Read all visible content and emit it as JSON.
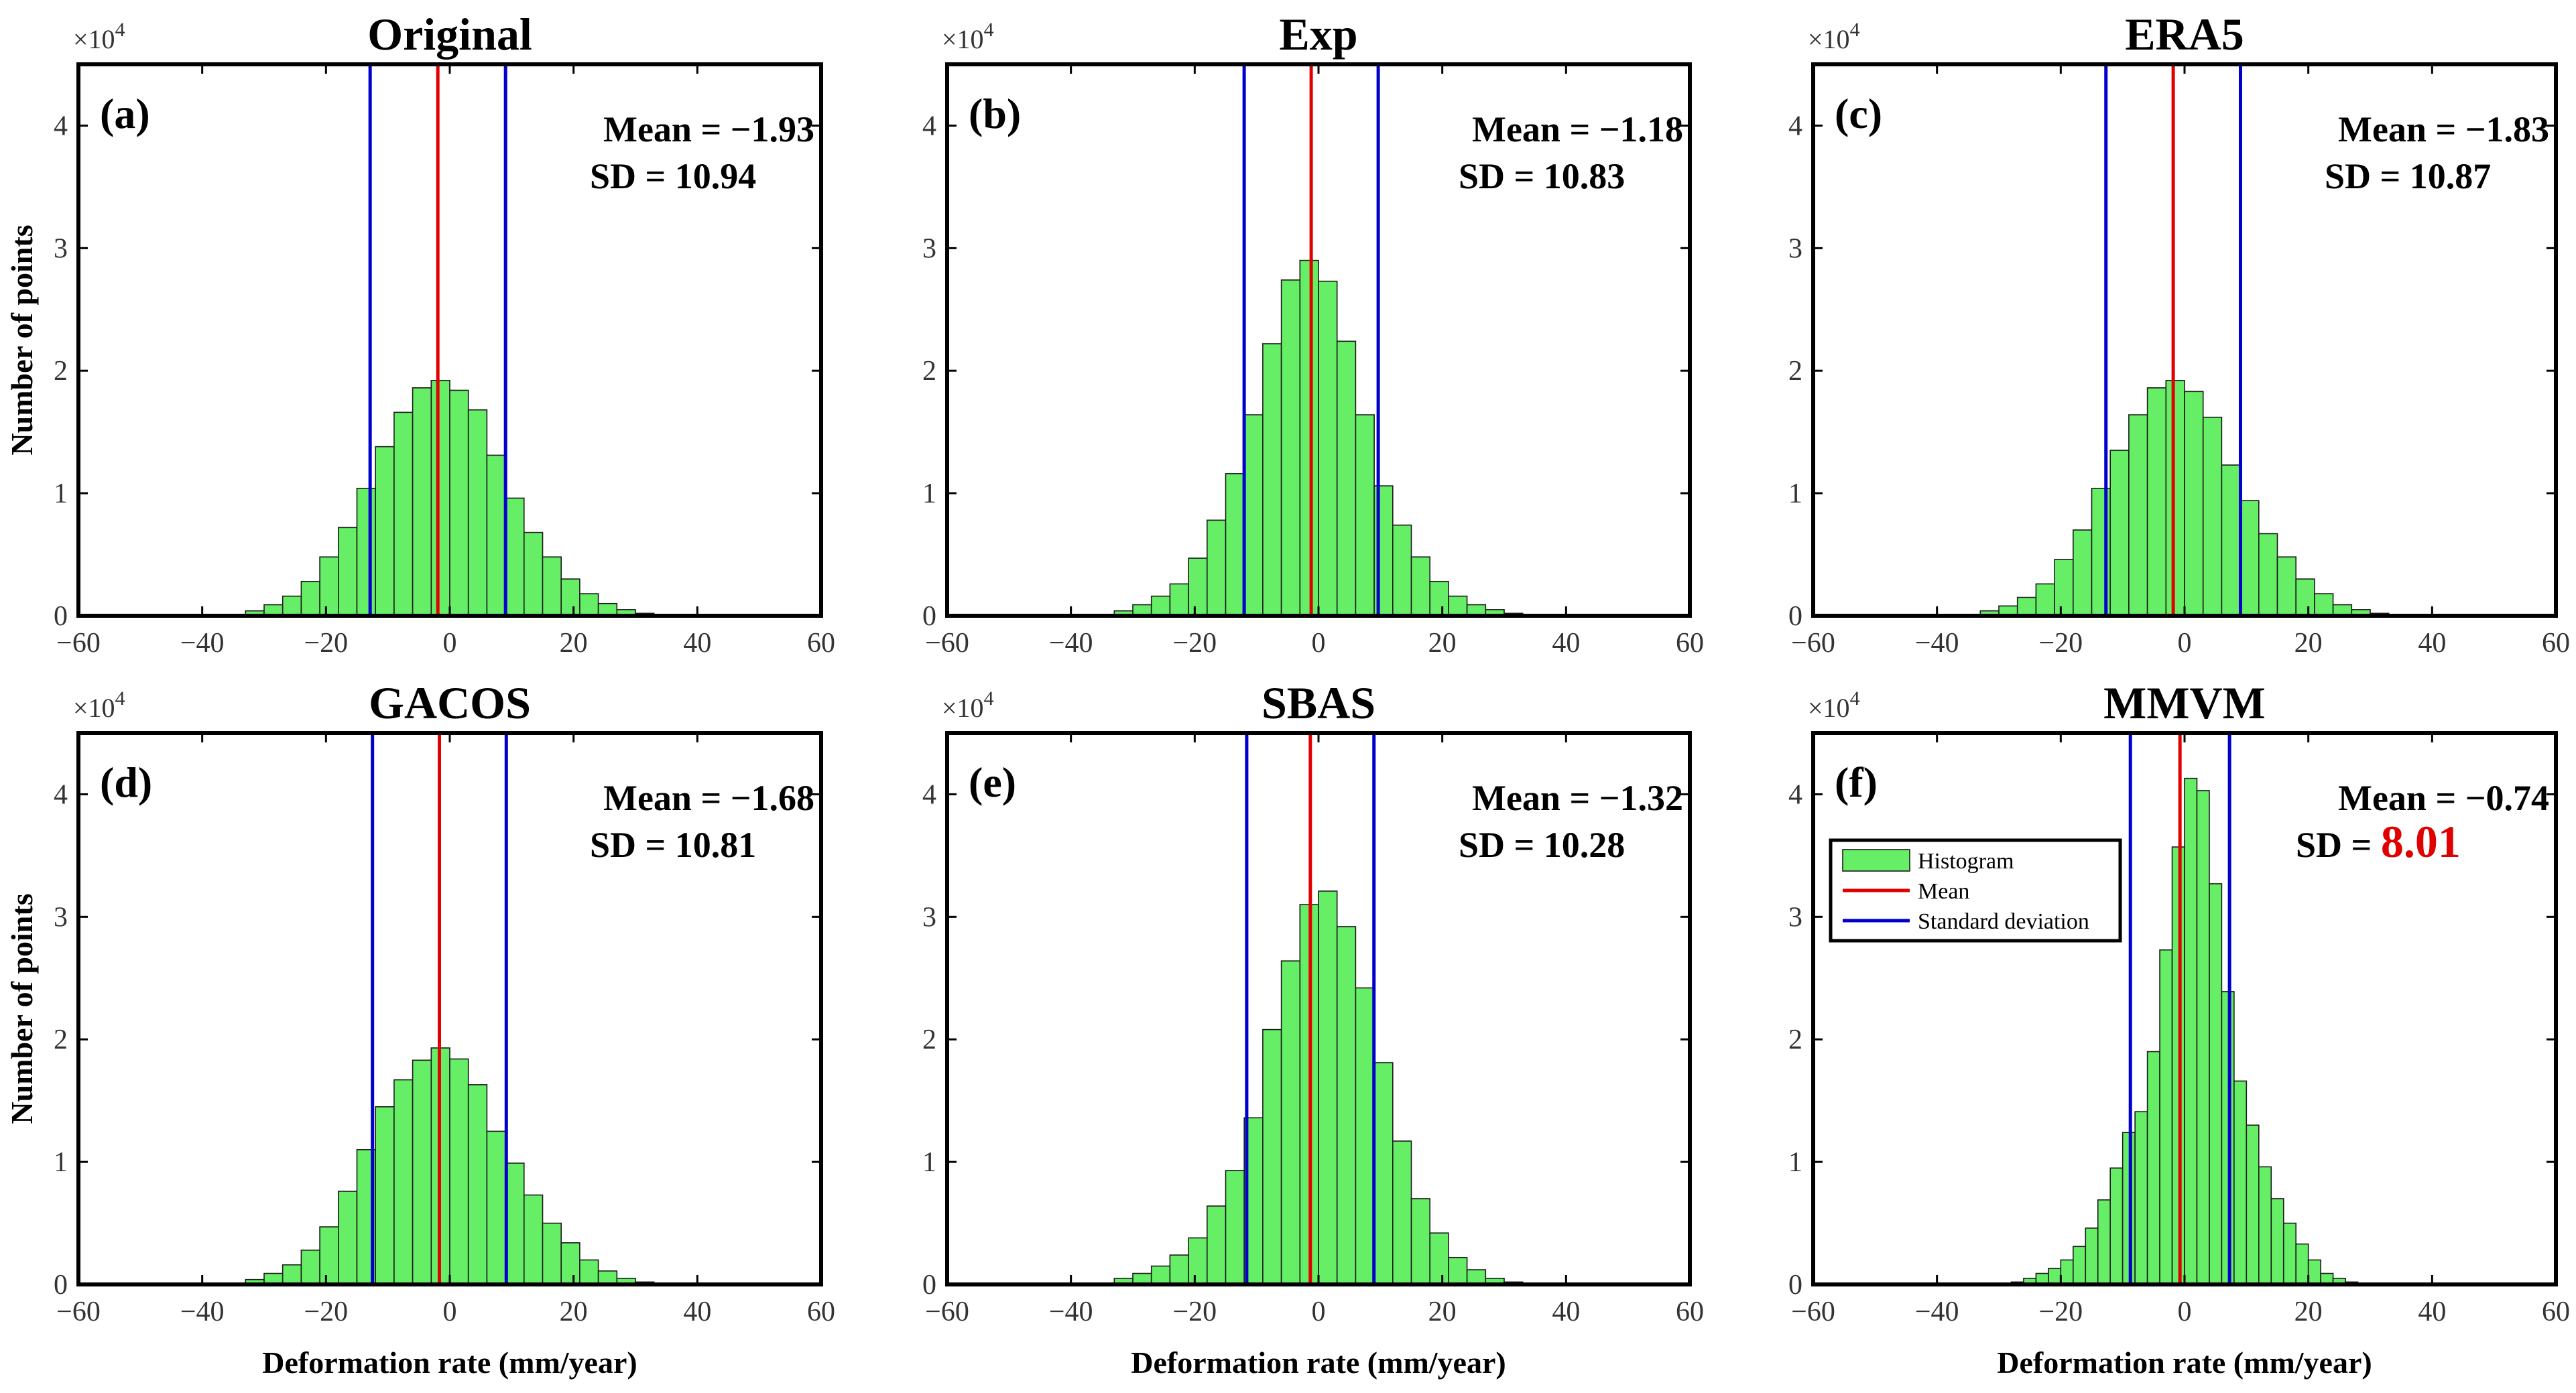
{
  "figure": {
    "ylabel": "Number of points",
    "xlabel": "Deformation rate (mm/year)",
    "y_exponent_label": "×10",
    "y_exponent_power": "4"
  },
  "legend": {
    "items": [
      {
        "label": "Histogram",
        "color": "#66ee66",
        "kind": "bar"
      },
      {
        "label": "Mean",
        "color": "#e00000",
        "kind": "line"
      },
      {
        "label": "Standard deviation",
        "color": "#0000cc",
        "kind": "line"
      }
    ]
  },
  "colors": {
    "bar_fill": "#66ee66",
    "bar_edge": "#1a1a1a",
    "mean_line": "#e00000",
    "sd_line": "#0000cc",
    "highlight": "#e00000"
  },
  "chart_data": [
    {
      "type": "bar",
      "id": "a",
      "label": "(a)",
      "title": "Original",
      "mean": -1.93,
      "sd": 10.94,
      "mean_text": "Mean = −1.93",
      "sd_text": "SD = 10.94",
      "sd_prefix": "SD = ",
      "sd_value_text": "10.94",
      "sd_highlight": false,
      "xlim": [
        -60,
        60
      ],
      "ylim": [
        0,
        45000
      ],
      "bin_width": 3,
      "x_ticks": [
        -60,
        -40,
        -20,
        0,
        20,
        40,
        60
      ],
      "x_tick_labels": [
        "−60",
        "−40",
        "−20",
        "0",
        "20",
        "40",
        "60"
      ],
      "y_ticks": [
        0,
        10000,
        20000,
        30000,
        40000
      ],
      "y_tick_labels": [
        "0",
        "1",
        "2",
        "3",
        "4"
      ],
      "bin_starts": [
        -39,
        -36,
        -33,
        -30,
        -27,
        -24,
        -21,
        -18,
        -15,
        -12,
        -9,
        -6,
        -3,
        0,
        3,
        6,
        9,
        12,
        15,
        18,
        21,
        24,
        27,
        30,
        33,
        36,
        39
      ],
      "values": [
        30,
        120,
        400,
        900,
        1600,
        2800,
        4800,
        7200,
        10400,
        13800,
        16600,
        18600,
        19200,
        18400,
        16800,
        13100,
        9600,
        6800,
        4800,
        3000,
        1800,
        1000,
        500,
        200,
        80,
        30,
        10
      ]
    },
    {
      "type": "bar",
      "id": "b",
      "label": "(b)",
      "title": "Exp",
      "mean": -1.18,
      "sd": 10.83,
      "mean_text": "Mean = −1.18",
      "sd_text": "SD = 10.83",
      "sd_prefix": "SD = ",
      "sd_value_text": "10.83",
      "sd_highlight": false,
      "xlim": [
        -60,
        60
      ],
      "ylim": [
        0,
        45000
      ],
      "bin_width": 3,
      "x_ticks": [
        -60,
        -40,
        -20,
        0,
        20,
        40,
        60
      ],
      "x_tick_labels": [
        "−60",
        "−40",
        "−20",
        "0",
        "20",
        "40",
        "60"
      ],
      "y_ticks": [
        0,
        10000,
        20000,
        30000,
        40000
      ],
      "y_tick_labels": [
        "0",
        "1",
        "2",
        "3",
        "4"
      ],
      "bin_starts": [
        -39,
        -36,
        -33,
        -30,
        -27,
        -24,
        -21,
        -18,
        -15,
        -12,
        -9,
        -6,
        -3,
        0,
        3,
        6,
        9,
        12,
        15,
        18,
        21,
        24,
        27,
        30,
        33,
        36,
        39
      ],
      "values": [
        30,
        120,
        400,
        900,
        1600,
        2600,
        4700,
        7800,
        11600,
        16400,
        22200,
        27400,
        29000,
        27300,
        22400,
        16400,
        10600,
        7400,
        4800,
        2800,
        1600,
        900,
        500,
        200,
        80,
        30,
        10
      ]
    },
    {
      "type": "bar",
      "id": "c",
      "label": "(c)",
      "title": "ERA5",
      "mean": -1.83,
      "sd": 10.87,
      "mean_text": "Mean = −1.83",
      "sd_text": "SD = 10.87",
      "sd_prefix": "SD = ",
      "sd_value_text": "10.87",
      "sd_highlight": false,
      "xlim": [
        -60,
        60
      ],
      "ylim": [
        0,
        45000
      ],
      "bin_width": 3,
      "x_ticks": [
        -60,
        -40,
        -20,
        0,
        20,
        40,
        60
      ],
      "x_tick_labels": [
        "−60",
        "−40",
        "−20",
        "0",
        "20",
        "40",
        "60"
      ],
      "y_ticks": [
        0,
        10000,
        20000,
        30000,
        40000
      ],
      "y_tick_labels": [
        "0",
        "1",
        "2",
        "3",
        "4"
      ],
      "bin_starts": [
        -39,
        -36,
        -33,
        -30,
        -27,
        -24,
        -21,
        -18,
        -15,
        -12,
        -9,
        -6,
        -3,
        0,
        3,
        6,
        9,
        12,
        15,
        18,
        21,
        24,
        27,
        30,
        33,
        36,
        39
      ],
      "values": [
        30,
        120,
        400,
        800,
        1500,
        2600,
        4600,
        7000,
        10400,
        13500,
        16400,
        18600,
        19200,
        18300,
        16200,
        12300,
        9400,
        6700,
        4800,
        3000,
        1800,
        900,
        500,
        200,
        80,
        30,
        10
      ]
    },
    {
      "type": "bar",
      "id": "d",
      "label": "(d)",
      "title": "GACOS",
      "mean": -1.68,
      "sd": 10.81,
      "mean_text": "Mean = −1.68",
      "sd_text": "SD = 10.81",
      "sd_prefix": "SD = ",
      "sd_value_text": "10.81",
      "sd_highlight": false,
      "xlim": [
        -60,
        60
      ],
      "ylim": [
        0,
        45000
      ],
      "bin_width": 3,
      "x_ticks": [
        -60,
        -40,
        -20,
        0,
        20,
        40,
        60
      ],
      "x_tick_labels": [
        "−60",
        "−40",
        "−20",
        "0",
        "20",
        "40",
        "60"
      ],
      "y_ticks": [
        0,
        10000,
        20000,
        30000,
        40000
      ],
      "y_tick_labels": [
        "0",
        "1",
        "2",
        "3",
        "4"
      ],
      "bin_starts": [
        -39,
        -36,
        -33,
        -30,
        -27,
        -24,
        -21,
        -18,
        -15,
        -12,
        -9,
        -6,
        -3,
        0,
        3,
        6,
        9,
        12,
        15,
        18,
        21,
        24,
        27,
        30,
        33,
        36,
        39
      ],
      "values": [
        30,
        120,
        400,
        900,
        1600,
        2800,
        4700,
        7600,
        11000,
        14500,
        16700,
        18300,
        19300,
        18400,
        16300,
        12500,
        9900,
        7300,
        5000,
        3400,
        2000,
        1100,
        500,
        200,
        80,
        30,
        10
      ]
    },
    {
      "type": "bar",
      "id": "e",
      "label": "(e)",
      "title": "SBAS",
      "mean": -1.32,
      "sd": 10.28,
      "mean_text": "Mean = −1.32",
      "sd_text": "SD = 10.28",
      "sd_prefix": "SD = ",
      "sd_value_text": "10.28",
      "sd_highlight": false,
      "xlim": [
        -60,
        60
      ],
      "ylim": [
        0,
        45000
      ],
      "bin_width": 3,
      "x_ticks": [
        -60,
        -40,
        -20,
        0,
        20,
        40,
        60
      ],
      "x_tick_labels": [
        "−60",
        "−40",
        "−20",
        "0",
        "20",
        "40",
        "60"
      ],
      "y_ticks": [
        0,
        10000,
        20000,
        30000,
        40000
      ],
      "y_tick_labels": [
        "0",
        "1",
        "2",
        "3",
        "4"
      ],
      "bin_starts": [
        -39,
        -36,
        -33,
        -30,
        -27,
        -24,
        -21,
        -18,
        -15,
        -12,
        -9,
        -6,
        -3,
        0,
        3,
        6,
        9,
        12,
        15,
        18,
        21,
        24,
        27,
        30,
        33,
        36,
        39
      ],
      "values": [
        30,
        120,
        500,
        900,
        1500,
        2400,
        3800,
        6400,
        9300,
        13600,
        20800,
        26400,
        31000,
        32100,
        29200,
        24200,
        18100,
        11700,
        7000,
        4200,
        2200,
        1200,
        500,
        200,
        80,
        30,
        10
      ]
    },
    {
      "type": "bar",
      "id": "f",
      "label": "(f)",
      "title": "MMVM",
      "mean": -0.74,
      "sd": 8.01,
      "mean_text": "Mean = −0.74",
      "sd_text": "SD = 8.01",
      "sd_prefix": "SD = ",
      "sd_value_text": "8.01",
      "sd_highlight": true,
      "xlim": [
        -60,
        60
      ],
      "ylim": [
        0,
        45000
      ],
      "bin_width": 2,
      "x_ticks": [
        -60,
        -40,
        -20,
        0,
        20,
        40,
        60
      ],
      "x_tick_labels": [
        "−60",
        "−40",
        "−20",
        "0",
        "20",
        "40",
        "60"
      ],
      "y_ticks": [
        0,
        10000,
        20000,
        30000,
        40000
      ],
      "y_tick_labels": [
        "0",
        "1",
        "2",
        "3",
        "4"
      ],
      "bin_starts": [
        -30,
        -28,
        -26,
        -24,
        -22,
        -20,
        -18,
        -16,
        -14,
        -12,
        -10,
        -8,
        -6,
        -4,
        -2,
        0,
        2,
        4,
        6,
        8,
        10,
        12,
        14,
        16,
        18,
        20,
        22,
        24,
        26,
        28
      ],
      "values": [
        50,
        200,
        500,
        900,
        1300,
        2000,
        3100,
        4600,
        6900,
        9500,
        12400,
        14100,
        19000,
        27300,
        35700,
        41300,
        40300,
        32700,
        23900,
        16600,
        13000,
        9600,
        7000,
        5000,
        3300,
        2000,
        900,
        500,
        200,
        50
      ]
    }
  ]
}
